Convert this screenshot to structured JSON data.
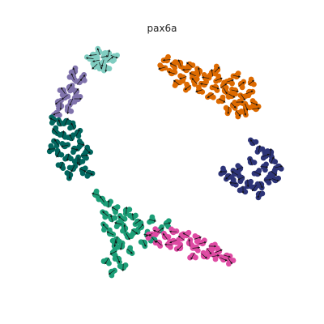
{
  "chart_data": {
    "type": "scatter",
    "title": "pax6a",
    "xlabel": "",
    "ylabel": "",
    "grid": false,
    "legend": "none",
    "axes_visible": false,
    "overlay": "velocity-arrows",
    "series": [
      {
        "color": "#80cdc1",
        "points": [
          [
            115,
            68
          ],
          [
            122,
            64
          ],
          [
            129,
            70
          ],
          [
            136,
            73
          ],
          [
            119,
            75
          ],
          [
            127,
            78
          ],
          [
            134,
            66
          ],
          [
            111,
            72
          ],
          [
            141,
            70
          ],
          [
            124,
            81
          ],
          [
            117,
            82
          ],
          [
            131,
            84
          ]
        ]
      },
      {
        "color": "#8073ac",
        "points": [
          [
            90,
            95
          ],
          [
            98,
            101
          ],
          [
            86,
            108
          ],
          [
            94,
            113
          ],
          [
            80,
            120
          ],
          [
            88,
            126
          ],
          [
            75,
            131
          ],
          [
            84,
            136
          ],
          [
            70,
            140
          ],
          [
            92,
            88
          ],
          [
            102,
            96
          ],
          [
            78,
            112
          ],
          [
            96,
            122
          ],
          [
            72,
            126
          ]
        ]
      },
      {
        "color": "#01665e",
        "points": [
          [
            66,
            148
          ],
          [
            74,
            152
          ],
          [
            82,
            150
          ],
          [
            90,
            156
          ],
          [
            68,
            162
          ],
          [
            78,
            166
          ],
          [
            88,
            170
          ],
          [
            96,
            164
          ],
          [
            70,
            176
          ],
          [
            80,
            180
          ],
          [
            92,
            184
          ],
          [
            100,
            178
          ],
          [
            72,
            190
          ],
          [
            84,
            194
          ],
          [
            96,
            198
          ],
          [
            104,
            192
          ],
          [
            76,
            204
          ],
          [
            90,
            208
          ],
          [
            102,
            210
          ],
          [
            86,
            216
          ],
          [
            98,
            200
          ],
          [
            110,
            214
          ],
          [
            64,
            184
          ],
          [
            108,
            186
          ]
        ]
      },
      {
        "color": "#dd6a00",
        "points": [
          [
            206,
            74
          ],
          [
            214,
            80
          ],
          [
            222,
            78
          ],
          [
            230,
            86
          ],
          [
            238,
            92
          ],
          [
            246,
            88
          ],
          [
            254,
            96
          ],
          [
            262,
            90
          ],
          [
            270,
            98
          ],
          [
            276,
            106
          ],
          [
            284,
            100
          ],
          [
            292,
            94
          ],
          [
            298,
            104
          ],
          [
            290,
            112
          ],
          [
            300,
            120
          ],
          [
            308,
            114
          ],
          [
            314,
            128
          ],
          [
            304,
            132
          ],
          [
            296,
            126
          ],
          [
            286,
            118
          ],
          [
            278,
            112
          ],
          [
            266,
            108
          ],
          [
            252,
            104
          ],
          [
            240,
            100
          ],
          [
            226,
            96
          ],
          [
            212,
            90
          ],
          [
            218,
            102
          ],
          [
            232,
            108
          ],
          [
            246,
            112
          ],
          [
            260,
            118
          ],
          [
            274,
            124
          ],
          [
            288,
            130
          ],
          [
            302,
            138
          ],
          [
            316,
            134
          ],
          [
            294,
            140
          ],
          [
            282,
            136
          ],
          [
            200,
            84
          ],
          [
            234,
            80
          ],
          [
            268,
            86
          ],
          [
            310,
            102
          ]
        ]
      },
      {
        "color": "#2d3478",
        "points": [
          [
            312,
            176
          ],
          [
            320,
            184
          ],
          [
            328,
            192
          ],
          [
            336,
            198
          ],
          [
            344,
            206
          ],
          [
            338,
            214
          ],
          [
            330,
            222
          ],
          [
            322,
            228
          ],
          [
            314,
            232
          ],
          [
            306,
            226
          ],
          [
            298,
            220
          ],
          [
            290,
            214
          ],
          [
            282,
            218
          ],
          [
            276,
            212
          ],
          [
            288,
            226
          ],
          [
            300,
            234
          ],
          [
            318,
            214
          ],
          [
            326,
            206
          ],
          [
            334,
            188
          ],
          [
            340,
            222
          ],
          [
            320,
            240
          ],
          [
            296,
            208
          ],
          [
            310,
            200
          ]
        ]
      },
      {
        "color": "#1b9e77",
        "points": [
          [
            118,
            240
          ],
          [
            126,
            246
          ],
          [
            134,
            252
          ],
          [
            142,
            258
          ],
          [
            130,
            264
          ],
          [
            138,
            270
          ],
          [
            146,
            276
          ],
          [
            154,
            282
          ],
          [
            136,
            288
          ],
          [
            144,
            296
          ],
          [
            150,
            304
          ],
          [
            140,
            312
          ],
          [
            146,
            320
          ],
          [
            152,
            330
          ],
          [
            138,
            336
          ],
          [
            142,
            300
          ],
          [
            158,
            292
          ],
          [
            166,
            286
          ],
          [
            174,
            280
          ],
          [
            182,
            290
          ],
          [
            190,
            296
          ],
          [
            198,
            284
          ],
          [
            206,
            276
          ],
          [
            178,
            300
          ],
          [
            164,
            268
          ],
          [
            156,
            260
          ],
          [
            130,
            280
          ],
          [
            150,
            270
          ],
          [
            170,
            274
          ],
          [
            188,
            272
          ],
          [
            160,
            310
          ],
          [
            132,
            322
          ]
        ]
      },
      {
        "color": "#de4ba3",
        "points": [
          [
            184,
            290
          ],
          [
            194,
            286
          ],
          [
            204,
            292
          ],
          [
            214,
            298
          ],
          [
            224,
            294
          ],
          [
            234,
            300
          ],
          [
            242,
            306
          ],
          [
            250,
            300
          ],
          [
            258,
            310
          ],
          [
            266,
            316
          ],
          [
            276,
            320
          ],
          [
            284,
            322
          ],
          [
            270,
            310
          ],
          [
            252,
            316
          ],
          [
            238,
            316
          ],
          [
            222,
            306
          ],
          [
            208,
            302
          ],
          [
            196,
            300
          ],
          [
            230,
            290
          ],
          [
            262,
            304
          ],
          [
            244,
            294
          ],
          [
            214,
            286
          ],
          [
            280,
            316
          ]
        ]
      }
    ]
  }
}
